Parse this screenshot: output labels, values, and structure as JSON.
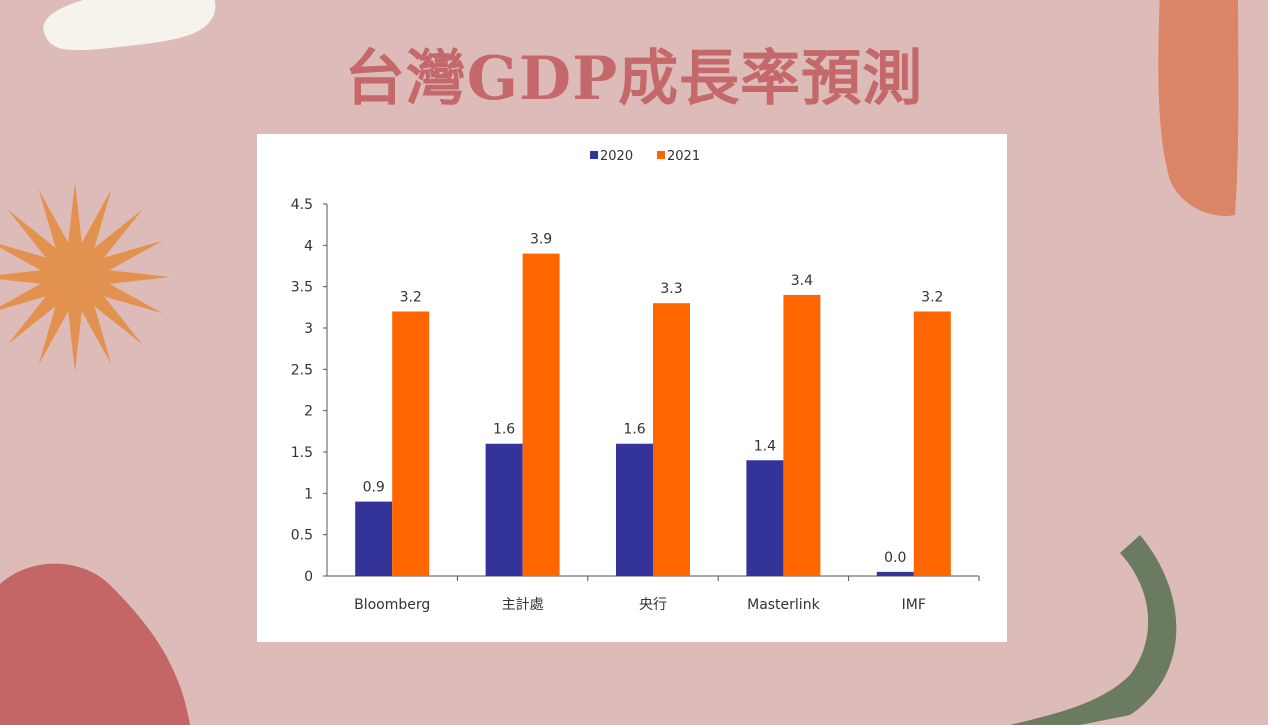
{
  "slide": {
    "title": "台灣GDP成長率預測"
  },
  "colors": {
    "background": "#dcbbb8",
    "title": "#c4686a",
    "series_2020": "#333399",
    "series_2021": "#ff6600"
  },
  "chart_data": {
    "type": "bar",
    "categories": [
      "Bloomberg",
      "主計處",
      "央行",
      "Masterlink",
      "IMF"
    ],
    "series": [
      {
        "name": "2020",
        "values": [
          0.9,
          1.6,
          1.6,
          1.4,
          0.05
        ],
        "labels": [
          "0.9",
          "1.6",
          "1.6",
          "1.4",
          "0.0"
        ],
        "color": "#333399"
      },
      {
        "name": "2021",
        "values": [
          3.2,
          3.9,
          3.3,
          3.4,
          3.2
        ],
        "labels": [
          "3.2",
          "3.9",
          "3.3",
          "3.4",
          "3.2"
        ],
        "color": "#ff6600"
      }
    ],
    "ylim": [
      0,
      4.5
    ],
    "yticks": [
      "0",
      "0.5",
      "1",
      "1.5",
      "2",
      "2.5",
      "3",
      "3.5",
      "4",
      "4.5"
    ],
    "grid": false,
    "legend": "top-center"
  }
}
